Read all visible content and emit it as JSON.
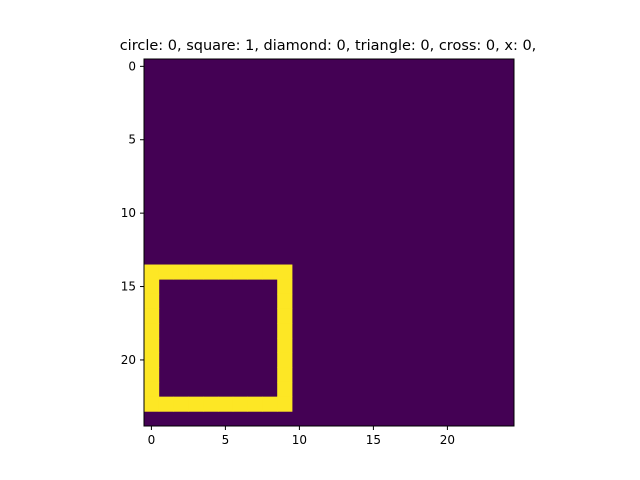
{
  "chart_data": {
    "type": "heatmap",
    "title": "circle: 0, square: 1, diamond: 0, triangle: 0, cross: 0, x: 0,",
    "xlabel": "",
    "ylabel": "",
    "grid_size": [
      25,
      25
    ],
    "x_ticks": [
      0,
      5,
      10,
      15,
      20
    ],
    "y_ticks": [
      0,
      5,
      10,
      15,
      20
    ],
    "xlim": [
      -0.5,
      24.5
    ],
    "ylim": [
      24.5,
      -0.5
    ],
    "grid": false,
    "colors": {
      "low": "#440154",
      "high": "#fde725"
    },
    "background_value": 0,
    "highlighted_cells_value": 1,
    "shapes": [
      {
        "type": "square-outline",
        "rows": [
          14,
          23
        ],
        "cols": [
          0,
          9
        ],
        "value": 1
      }
    ]
  }
}
